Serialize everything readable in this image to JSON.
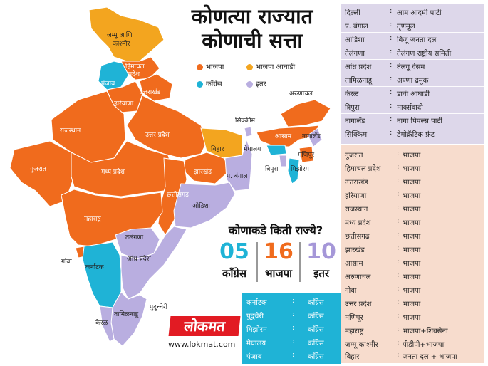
{
  "title": {
    "line1": "कोणत्या राज्यात",
    "line2": "कोणाची सत्ता"
  },
  "legend": [
    {
      "label": "भाजपा",
      "color": "#f06b1d"
    },
    {
      "label": "भाजपा आघाडी",
      "color": "#f3a51f"
    },
    {
      "label": "काँग्रेस",
      "color": "#1fb3d6"
    },
    {
      "label": "इतर",
      "color": "#b9aee0"
    }
  ],
  "map_labels": {
    "jk": "जम्मू आणि",
    "jk2": "काश्मीर",
    "hp": "हिमाचल",
    "hp2": "प्रदेश",
    "pb": "पंजाब",
    "uk": "उत्तराखंड",
    "hr": "हरियाणा",
    "rj": "राजस्थान",
    "up": "उत्तर प्रदेश",
    "gj": "गुजरात",
    "mp": "मध्य प्रदेश",
    "br": "बिहार",
    "jh": "झारखंड",
    "wb": "प. बंगाल",
    "cg": "छत्तीसगड",
    "od": "ओडिशा",
    "mh": "महाराष्ट्र",
    "tg": "तेलंगणा",
    "goa": "गोवा",
    "ka": "कर्नाटक",
    "ap": "आंध्र प्रदेश",
    "py": "पुदुच्चेरी",
    "tn": "तामिळनाडू",
    "kl": "केरळ",
    "sk": "सिक्कीम",
    "ar": "अरुणाचल",
    "as": "आसाम",
    "nl": "नागालँड",
    "ml": "मेघालय",
    "mn": "मणिपूर",
    "tr": "त्रिपुरा",
    "mz": "मिझोरम"
  },
  "count": {
    "question": "कोणाकडे किती राज्ये?",
    "items": [
      {
        "value": "05",
        "label": "काँग्रेस",
        "color": "#1fb3d6"
      },
      {
        "value": "16",
        "label": "भाजपा",
        "color": "#f06b1d"
      },
      {
        "value": "10",
        "label": "इतर",
        "color": "#a597d8"
      }
    ]
  },
  "congress_table": [
    {
      "state": "कर्नाटक",
      "sep": ":",
      "party": "काँग्रेस"
    },
    {
      "state": "पुदुचेरी",
      "sep": ":",
      "party": "काँग्रेस"
    },
    {
      "state": "मिझोरम",
      "sep": ":",
      "party": "काँग्रेस"
    },
    {
      "state": "मेघालय",
      "sep": ":",
      "party": "काँग्रेस"
    },
    {
      "state": "पंजाब",
      "sep": ":",
      "party": "काँग्रेस"
    }
  ],
  "brand": {
    "logo": "लोकमत",
    "url": "www.lokmat.com"
  },
  "others_table": [
    {
      "state": "दिल्ली",
      "sep": ":",
      "party": "आम आदमी पार्टी"
    },
    {
      "state": "प. बंगाल",
      "sep": ":",
      "party": "तृणमूल"
    },
    {
      "state": "ओडिशा",
      "sep": ":",
      "party": "बिजू जनता दल"
    },
    {
      "state": "तेलंगणा",
      "sep": ":",
      "party": "तेलंगण राष्ट्रीय समिती"
    },
    {
      "state": "आंध्र प्रदेश",
      "sep": ":",
      "party": "तेलगू देसम"
    },
    {
      "state": "तामिळनाडू",
      "sep": ":",
      "party": "अण्णा द्रमुक"
    },
    {
      "state": "केरळ",
      "sep": ":",
      "party": "डावी आघाडी"
    },
    {
      "state": "त्रिपुरा",
      "sep": ":",
      "party": "मार्क्सवादी"
    },
    {
      "state": "नागालँड",
      "sep": ":",
      "party": "नागा पिपल्स पार्टी"
    },
    {
      "state": "सिक्किम",
      "sep": ":",
      "party": "डेमोक्रॅटिक फ्रंट"
    }
  ],
  "bjp_table": [
    {
      "state": "गुजरात",
      "sep": ":",
      "party": "भाजपा"
    },
    {
      "state": "हिमाचल प्रदेश",
      "sep": ":",
      "party": "भाजपा"
    },
    {
      "state": "उत्तराखंड",
      "sep": ":",
      "party": "भाजपा"
    },
    {
      "state": "हरियाणा",
      "sep": ":",
      "party": "भाजपा"
    },
    {
      "state": "राजस्थान",
      "sep": ":",
      "party": "भाजपा"
    },
    {
      "state": "मध्य प्रदेश",
      "sep": ":",
      "party": "भाजपा"
    },
    {
      "state": "छत्तीसगढ",
      "sep": ":",
      "party": "भाजपा"
    },
    {
      "state": "झारखंड",
      "sep": ":",
      "party": "भाजपा"
    },
    {
      "state": "आसाम",
      "sep": ":",
      "party": "भाजपा"
    },
    {
      "state": "अरुणाचल",
      "sep": ":",
      "party": "भाजपा"
    },
    {
      "state": "गोवा",
      "sep": ":",
      "party": "भाजपा"
    },
    {
      "state": "उत्तर प्रदेश",
      "sep": ":",
      "party": "भाजपा"
    },
    {
      "state": "मणिपूर",
      "sep": ":",
      "party": "भाजपा"
    },
    {
      "state": "महाराष्ट्र",
      "sep": ":",
      "party": "भाजपा+शिवसेना"
    },
    {
      "state": "जम्मू काश्मीर",
      "sep": ":",
      "party": "पीडीपी+भाजपा"
    },
    {
      "state": "बिहार",
      "sep": ":",
      "party": "जनता दल + भाजपा"
    }
  ]
}
